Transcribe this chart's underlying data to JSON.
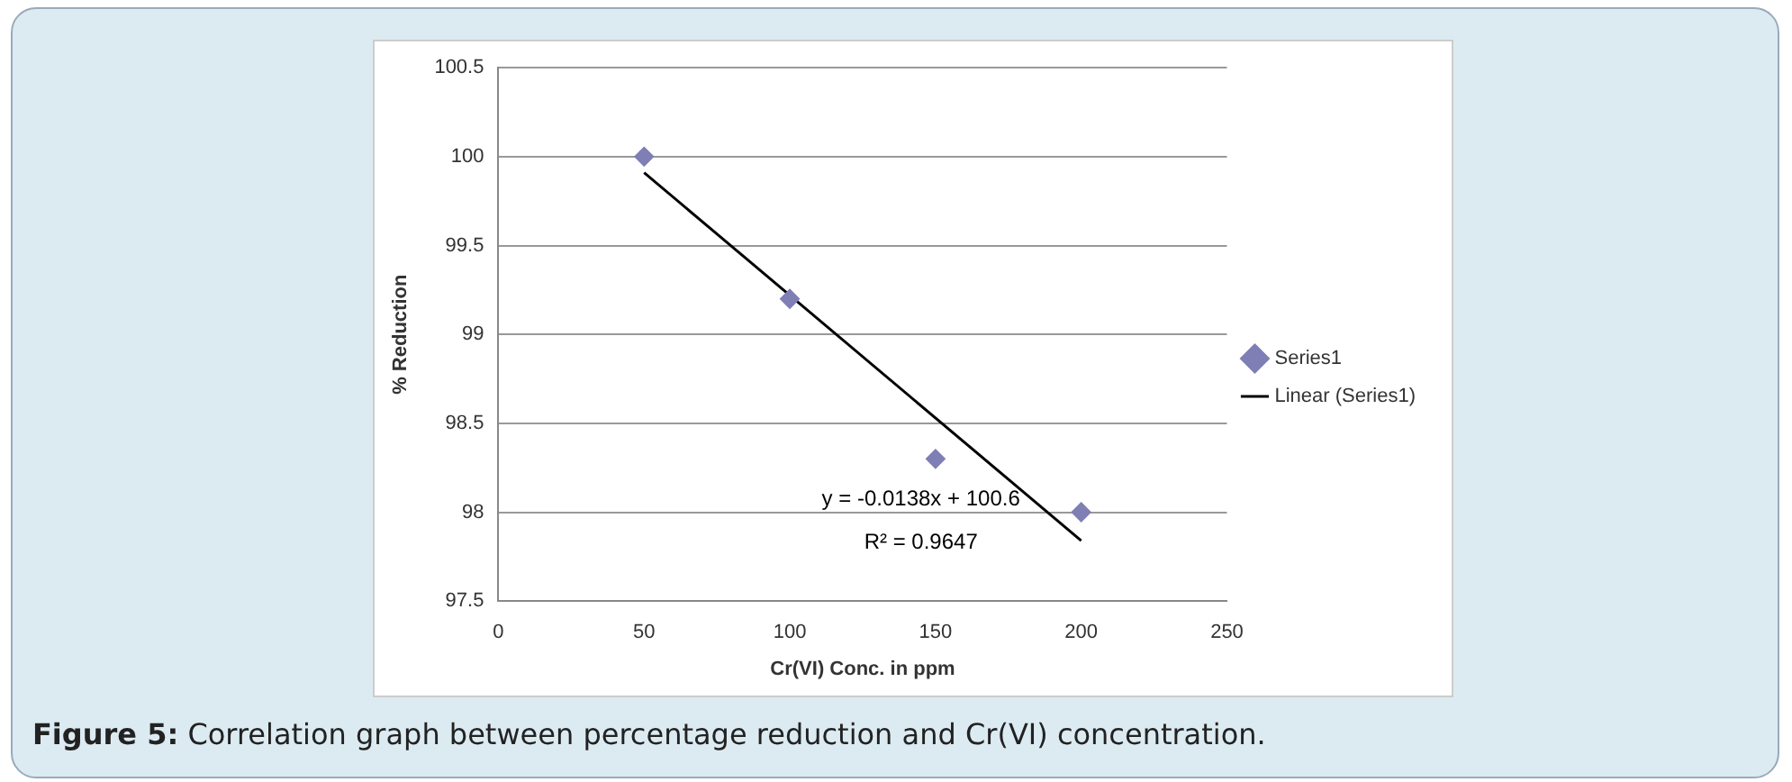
{
  "chart_data": {
    "type": "scatter",
    "xlabel": "Cr(VI) Conc. in ppm",
    "ylabel": "% Reduction",
    "series": [
      {
        "name": "Series1",
        "type": "scatter",
        "color": "#7f7fb5",
        "marker": "diamond",
        "x": [
          50,
          100,
          150,
          200
        ],
        "values": [
          100,
          99.2,
          98.3,
          98.0
        ]
      },
      {
        "name": "Linear (Series1)",
        "type": "line",
        "color": "#000000",
        "marker": "none",
        "x": [
          50,
          200
        ],
        "values": [
          99.91,
          97.84
        ]
      }
    ],
    "xlim": [
      0,
      250
    ],
    "xticks": [
      0,
      50,
      100,
      150,
      200,
      250
    ],
    "ylim": [
      97.5,
      100.5
    ],
    "yticks": [
      97.5,
      98,
      98.5,
      99,
      99.5,
      100,
      100.5
    ],
    "grid": "y",
    "legend": "right",
    "annotations": [
      "y = -0.0138x + 100.6",
      "R² = 0.9647",
      "Figure 5: Correlation graph between percentage reduction and Cr(VI) concentration."
    ]
  }
}
